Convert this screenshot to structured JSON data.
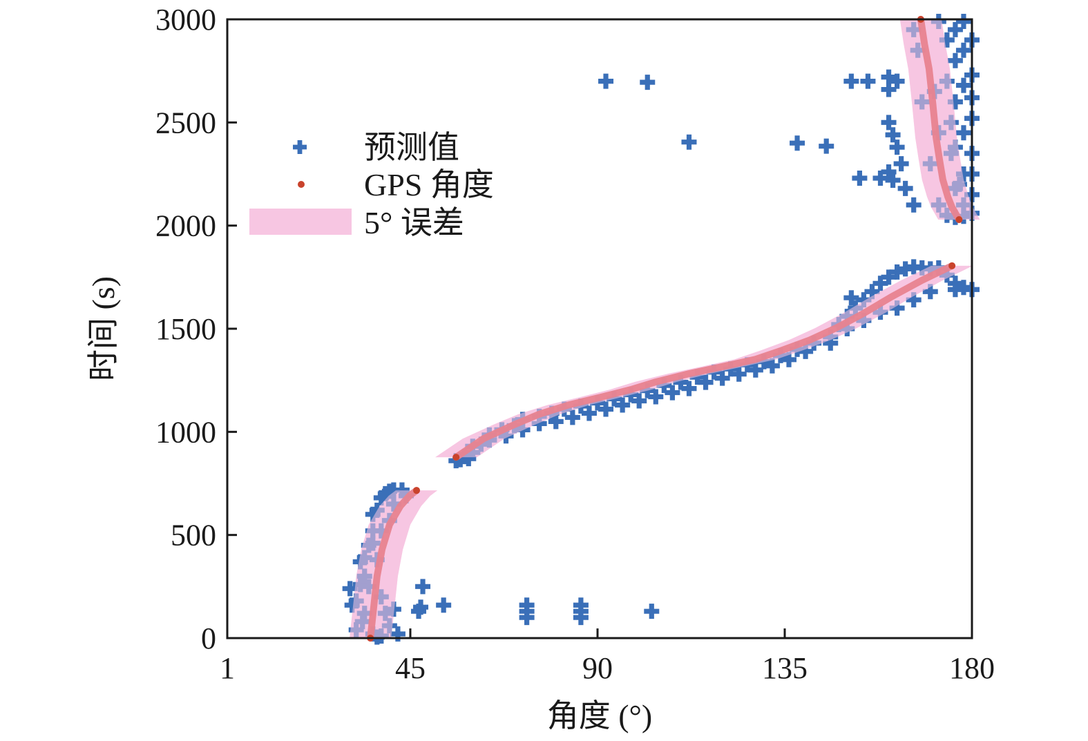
{
  "chart_data": {
    "type": "scatter",
    "title": "",
    "xlabel": "角度 (°)",
    "ylabel": "时间 (s)",
    "xlim": [
      1,
      180
    ],
    "ylim": [
      0,
      3000
    ],
    "xticks": [
      1,
      45,
      90,
      135,
      180
    ],
    "yticks": [
      0,
      500,
      1000,
      1500,
      2000,
      2500,
      3000
    ],
    "grid": false,
    "legend_position": "upper-left",
    "colors": {
      "predicted": "#3a6fb8",
      "gps": "#e8838f",
      "gps_marker": "#c9432c",
      "band": "#f7c6e2",
      "axis": "#1a1a1a"
    },
    "legend": [
      {
        "key": "predicted",
        "label": "预测值",
        "marker": "plus"
      },
      {
        "key": "gps",
        "label": "GPS 角度",
        "marker": "dot"
      },
      {
        "key": "band",
        "label": "5° 误差",
        "marker": "patch"
      }
    ],
    "error_band_deg": 5,
    "series": [
      {
        "name": "GPS 角度",
        "type": "line",
        "segments": [
          [
            [
              35.4,
              0
            ],
            [
              36.2,
              150
            ],
            [
              37.0,
              300
            ],
            [
              38.2,
              430
            ],
            [
              40.0,
              550
            ],
            [
              42.6,
              640
            ],
            [
              44.8,
              690
            ],
            [
              46.5,
              716
            ]
          ],
          [
            [
              56.0,
              877
            ],
            [
              62.6,
              967
            ],
            [
              70,
              1035
            ],
            [
              75.9,
              1085
            ],
            [
              83,
              1130
            ],
            [
              90.8,
              1168
            ],
            [
              98,
              1205
            ],
            [
              104,
              1242
            ],
            [
              112,
              1282
            ],
            [
              120.7,
              1319
            ],
            [
              128,
              1352
            ],
            [
              134,
              1393
            ],
            [
              141,
              1445
            ],
            [
              147.3,
              1503
            ],
            [
              154,
              1575
            ],
            [
              160.6,
              1654
            ],
            [
              168,
              1735
            ],
            [
              175.2,
              1805
            ]
          ],
          [
            [
              167.7,
              3000
            ],
            [
              168.6,
              2880
            ],
            [
              169.7,
              2759
            ],
            [
              170.6,
              2590
            ],
            [
              171.4,
              2424
            ],
            [
              172.2,
              2320
            ],
            [
              173.0,
              2223
            ],
            [
              174.2,
              2140
            ],
            [
              175.2,
              2089
            ],
            [
              176.9,
              2029
            ]
          ]
        ]
      },
      {
        "name": "预测值",
        "type": "scatter",
        "points": [
          [
            32,
            40
          ],
          [
            32,
            180
          ],
          [
            33,
            260
          ],
          [
            33,
            370
          ],
          [
            34,
            120
          ],
          [
            34,
            300
          ],
          [
            33.5,
            80
          ],
          [
            35,
            450
          ],
          [
            36,
            520
          ],
          [
            36,
            600
          ],
          [
            37,
            620
          ],
          [
            38,
            680
          ],
          [
            39,
            700
          ],
          [
            40,
            712
          ],
          [
            41,
            718
          ],
          [
            43,
            718
          ],
          [
            44,
            690
          ],
          [
            41,
            650
          ],
          [
            40,
            570
          ],
          [
            38,
            520
          ],
          [
            37,
            380
          ],
          [
            38,
            200
          ],
          [
            39,
            120
          ],
          [
            40,
            60
          ],
          [
            41,
            140
          ],
          [
            42,
            20
          ],
          [
            36,
            20
          ],
          [
            37,
            5
          ],
          [
            38,
            10
          ],
          [
            31,
            160
          ],
          [
            30.5,
            240
          ],
          [
            35,
            250
          ],
          [
            34,
            390
          ],
          [
            36,
            460
          ],
          [
            47,
            130
          ],
          [
            48,
            250
          ],
          [
            47.5,
            150
          ],
          [
            53,
            160
          ],
          [
            73,
            130
          ],
          [
            73,
            160
          ],
          [
            73,
            100
          ],
          [
            86,
            130
          ],
          [
            86,
            160
          ],
          [
            86,
            100
          ],
          [
            103,
            130
          ],
          [
            57,
            865
          ],
          [
            59,
            870
          ],
          [
            60,
            900
          ],
          [
            62,
            940
          ],
          [
            64,
            985
          ],
          [
            67,
            1010
          ],
          [
            70,
            1030
          ],
          [
            72,
            1060
          ],
          [
            76,
            1075
          ],
          [
            79,
            1090
          ],
          [
            82,
            1110
          ],
          [
            86,
            1125
          ],
          [
            90,
            1140
          ],
          [
            94,
            1160
          ],
          [
            98,
            1180
          ],
          [
            102,
            1200
          ],
          [
            106,
            1225
          ],
          [
            110,
            1240
          ],
          [
            114,
            1265
          ],
          [
            118,
            1290
          ],
          [
            122,
            1305
          ],
          [
            126,
            1325
          ],
          [
            130,
            1340
          ],
          [
            134,
            1370
          ],
          [
            138,
            1400
          ],
          [
            142,
            1430
          ],
          [
            146,
            1460
          ],
          [
            148,
            1520
          ],
          [
            150,
            1560
          ],
          [
            152,
            1600
          ],
          [
            154,
            1640
          ],
          [
            156,
            1680
          ],
          [
            158,
            1720
          ],
          [
            160,
            1750
          ],
          [
            162,
            1775
          ],
          [
            164,
            1790
          ],
          [
            166,
            1800
          ],
          [
            168,
            1795
          ],
          [
            170,
            1790
          ],
          [
            172,
            1795
          ],
          [
            174,
            1760
          ],
          [
            176,
            1720
          ],
          [
            178,
            1700
          ],
          [
            180,
            1690
          ],
          [
            176,
            1690
          ],
          [
            170,
            1680
          ],
          [
            166,
            1640
          ],
          [
            162,
            1600
          ],
          [
            158,
            1580
          ],
          [
            154,
            1540
          ],
          [
            151,
            1650
          ],
          [
            150,
            1500
          ],
          [
            146,
            1430
          ],
          [
            140,
            1390
          ],
          [
            136,
            1350
          ],
          [
            132,
            1320
          ],
          [
            128,
            1300
          ],
          [
            124,
            1280
          ],
          [
            120,
            1260
          ],
          [
            116,
            1240
          ],
          [
            112,
            1210
          ],
          [
            108,
            1190
          ],
          [
            104,
            1170
          ],
          [
            100,
            1150
          ],
          [
            96,
            1130
          ],
          [
            92,
            1110
          ],
          [
            88,
            1090
          ],
          [
            84,
            1070
          ],
          [
            80,
            1050
          ],
          [
            76,
            1040
          ],
          [
            72,
            1010
          ],
          [
            68,
            980
          ],
          [
            64,
            960
          ],
          [
            60,
            930
          ],
          [
            58,
            880
          ],
          [
            56,
            860
          ],
          [
            92,
            2700
          ],
          [
            102,
            2695
          ],
          [
            112,
            2405
          ],
          [
            138,
            2400
          ],
          [
            145,
            2385
          ],
          [
            151,
            2700
          ],
          [
            155,
            2700
          ],
          [
            153,
            2230
          ],
          [
            158,
            2230
          ],
          [
            160,
            2720
          ],
          [
            160,
            2660
          ],
          [
            162,
            2700
          ],
          [
            160,
            2500
          ],
          [
            161,
            2440
          ],
          [
            162,
            2380
          ],
          [
            160,
            2260
          ],
          [
            161,
            2220
          ],
          [
            163,
            2300
          ],
          [
            164,
            2180
          ],
          [
            166,
            2100
          ],
          [
            166,
            2950
          ],
          [
            167,
            2850
          ],
          [
            168,
            2600
          ],
          [
            170,
            2300
          ],
          [
            172,
            2100
          ],
          [
            174,
            2050
          ],
          [
            176,
            2040
          ],
          [
            178,
            2045
          ],
          [
            180,
            2060
          ],
          [
            178,
            2100
          ],
          [
            180,
            2150
          ],
          [
            176,
            2180
          ],
          [
            178,
            2250
          ],
          [
            180,
            2350
          ],
          [
            178,
            2450
          ],
          [
            180,
            2520
          ],
          [
            176,
            2600
          ],
          [
            180,
            2620
          ],
          [
            178,
            2680
          ],
          [
            180,
            2730
          ],
          [
            176,
            2800
          ],
          [
            178,
            2850
          ],
          [
            180,
            2900
          ],
          [
            176,
            2950
          ],
          [
            178,
            2990
          ],
          [
            172,
            2990
          ],
          [
            174,
            2900
          ],
          [
            174,
            2700
          ],
          [
            175,
            2500
          ],
          [
            175,
            2350
          ],
          [
            172,
            2450
          ],
          [
            171,
            2650
          ],
          [
            176,
            2380
          ],
          [
            177,
            2200
          ],
          [
            180,
            2250
          ]
        ]
      }
    ]
  }
}
